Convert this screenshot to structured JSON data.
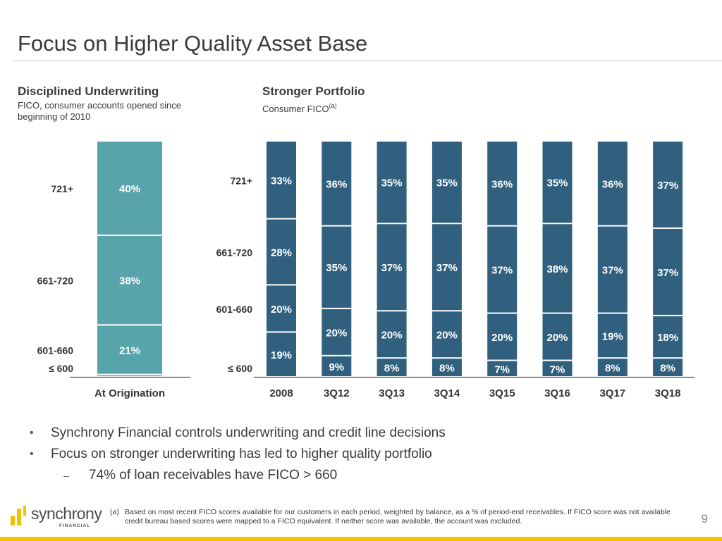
{
  "slide": {
    "title": "Focus on Higher Quality Asset Base",
    "page_number": "9"
  },
  "left_section": {
    "heading": "Disciplined Underwriting",
    "subtitle": "FICO, consumer accounts opened since beginning of 2010"
  },
  "right_section": {
    "heading": "Stronger Portfolio",
    "subtitle": "Consumer FICO",
    "subtitle_sup": "(a)"
  },
  "chart_data": [
    {
      "type": "bar",
      "stacked": true,
      "title": "Disciplined Underwriting",
      "subtitle": "FICO, consumer accounts opened since beginning of 2010",
      "categories": [
        "At Origination"
      ],
      "series": [
        {
          "name": "≤ 600",
          "values": [
            1
          ]
        },
        {
          "name": "601-660",
          "values": [
            21
          ]
        },
        {
          "name": "661-720",
          "values": [
            38
          ]
        },
        {
          "name": "721+",
          "values": [
            40
          ]
        }
      ],
      "value_suffix": "%",
      "ylim": [
        0,
        100
      ],
      "color": "#57a4ab",
      "grid": false,
      "legend": "left"
    },
    {
      "type": "bar",
      "stacked": true,
      "title": "Stronger Portfolio",
      "subtitle": "Consumer FICO(a)",
      "categories": [
        "2008",
        "3Q12",
        "3Q13",
        "3Q14",
        "3Q15",
        "3Q16",
        "3Q17",
        "3Q18"
      ],
      "series": [
        {
          "name": "≤ 600",
          "values": [
            19,
            9,
            8,
            8,
            7,
            7,
            8,
            8
          ]
        },
        {
          "name": "601-660",
          "values": [
            20,
            20,
            20,
            20,
            20,
            20,
            19,
            18
          ]
        },
        {
          "name": "661-720",
          "values": [
            28,
            35,
            37,
            37,
            37,
            38,
            37,
            37
          ]
        },
        {
          "name": "721+",
          "values": [
            33,
            36,
            35,
            35,
            36,
            35,
            36,
            37
          ]
        }
      ],
      "value_suffix": "%",
      "ylim": [
        0,
        100
      ],
      "color": "#30607e",
      "grid": false,
      "legend": "left"
    }
  ],
  "bullets": [
    {
      "level": 1,
      "text": "Synchrony Financial controls underwriting and credit line decisions"
    },
    {
      "level": 1,
      "text": "Focus on stronger underwriting has led to higher quality portfolio"
    },
    {
      "level": 2,
      "text": "74% of loan receivables have FICO > 660"
    }
  ],
  "footnote": {
    "marker": "(a)",
    "text": "Based on most recent FICO scores available for our customers in each period, weighted by balance, as a % of period-end receivables. If FICO score was not available credit bureau based scores were mapped to a FICO equivalent. If neither score was available, the account was excluded."
  },
  "logo": {
    "name": "synchrony",
    "tagline": "FINANCIAL"
  },
  "colors": {
    "origination_bar": "#57a4ab",
    "portfolio_bar": "#30607e",
    "footer_accent": "#f7c400",
    "text": "#3a3a3a"
  }
}
